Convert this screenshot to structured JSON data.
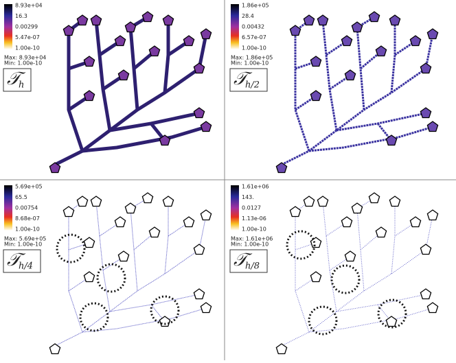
{
  "panels": [
    {
      "ticks": [
        "8.93e+04",
        "16.3",
        "0.00299",
        "5.47e-07",
        "1.00e-10"
      ],
      "max": "Max: 8.93e+04",
      "min": "Min: 1.00e-10",
      "label": "𝒯",
      "subscript": "h"
    },
    {
      "ticks": [
        "1.86e+05",
        "28.4",
        "0.00432",
        "6.57e-07",
        "1.00e-10"
      ],
      "max": "Max: 1.86e+05",
      "min": "Min: 1.00e-10",
      "label": "𝒯",
      "subscript": "h/2"
    },
    {
      "ticks": [
        "5.69e+05",
        "65.5",
        "0.00754",
        "8.68e-07",
        "1.00e-10"
      ],
      "max": "Max: 5.69e+05",
      "min": "Min: 1.00e-10",
      "label": "𝒯",
      "subscript": "h/4"
    },
    {
      "ticks": [
        "1.61e+06",
        "143.",
        "0.0127",
        "1.13e-06",
        "1.00e-10"
      ],
      "max": "Max: 1.61e+06",
      "min": "Min: 1.00e-10",
      "label": "𝒯",
      "subscript": "h/8"
    }
  ]
}
